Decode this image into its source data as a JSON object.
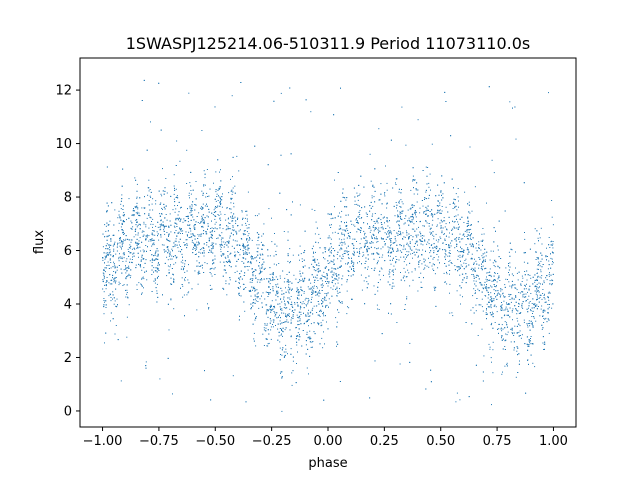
{
  "chart_data": {
    "type": "scatter",
    "title": "1SWASPJ125214.06-510311.9 Period 11073110.0s",
    "xlabel": "phase",
    "ylabel": "flux",
    "xlim": [
      -1.1,
      1.1
    ],
    "ylim": [
      -0.6,
      13.2
    ],
    "xticks": [
      -1.0,
      -0.75,
      -0.5,
      -0.25,
      0.0,
      0.25,
      0.5,
      0.75,
      1.0
    ],
    "xtick_labels": [
      "−1.00",
      "−0.75",
      "−0.50",
      "−0.25",
      "0.00",
      "0.25",
      "0.50",
      "0.75",
      "1.00"
    ],
    "yticks": [
      0,
      2,
      4,
      6,
      8,
      10,
      12
    ],
    "ytick_labels": [
      "0",
      "2",
      "4",
      "6",
      "8",
      "10",
      "12"
    ],
    "grid": false,
    "marker_color": "#1f77b4",
    "series": [
      {
        "points_description_by_phase": [
          {
            "phase_range": [
              -1.0,
              -0.9
            ],
            "flux_range": [
              2.5,
              8.2
            ]
          },
          {
            "phase_range": [
              -0.9,
              -0.75
            ],
            "flux_range": [
              3.5,
              8.5
            ]
          },
          {
            "phase_range": [
              -0.75,
              -0.55
            ],
            "flux_range": [
              4.5,
              9.3
            ]
          },
          {
            "phase_range": [
              -0.55,
              -0.35
            ],
            "flux_range": [
              3.0,
              8.5
            ]
          },
          {
            "phase_range": [
              -0.35,
              -0.15
            ],
            "flux_range": [
              3.2,
              8.3
            ]
          },
          {
            "phase_range": [
              -0.15,
              0.0
            ],
            "flux_range": [
              2.8,
              7.5
            ]
          },
          {
            "phase_range": [
              0.0,
              0.1
            ],
            "flux_range": [
              2.5,
              7.0
            ]
          },
          {
            "phase_range": [
              0.1,
              0.25
            ],
            "flux_range": [
              3.5,
              8.5
            ]
          },
          {
            "phase_range": [
              0.25,
              0.45
            ],
            "flux_range": [
              4.5,
              9.3
            ]
          },
          {
            "phase_range": [
              0.45,
              0.65
            ],
            "flux_range": [
              3.0,
              8.5
            ]
          },
          {
            "phase_range": [
              0.65,
              0.85
            ],
            "flux_range": [
              3.2,
              8.3
            ]
          },
          {
            "phase_range": [
              0.85,
              1.0
            ],
            "flux_range": [
              2.8,
              7.5
            ]
          }
        ]
      }
    ]
  }
}
